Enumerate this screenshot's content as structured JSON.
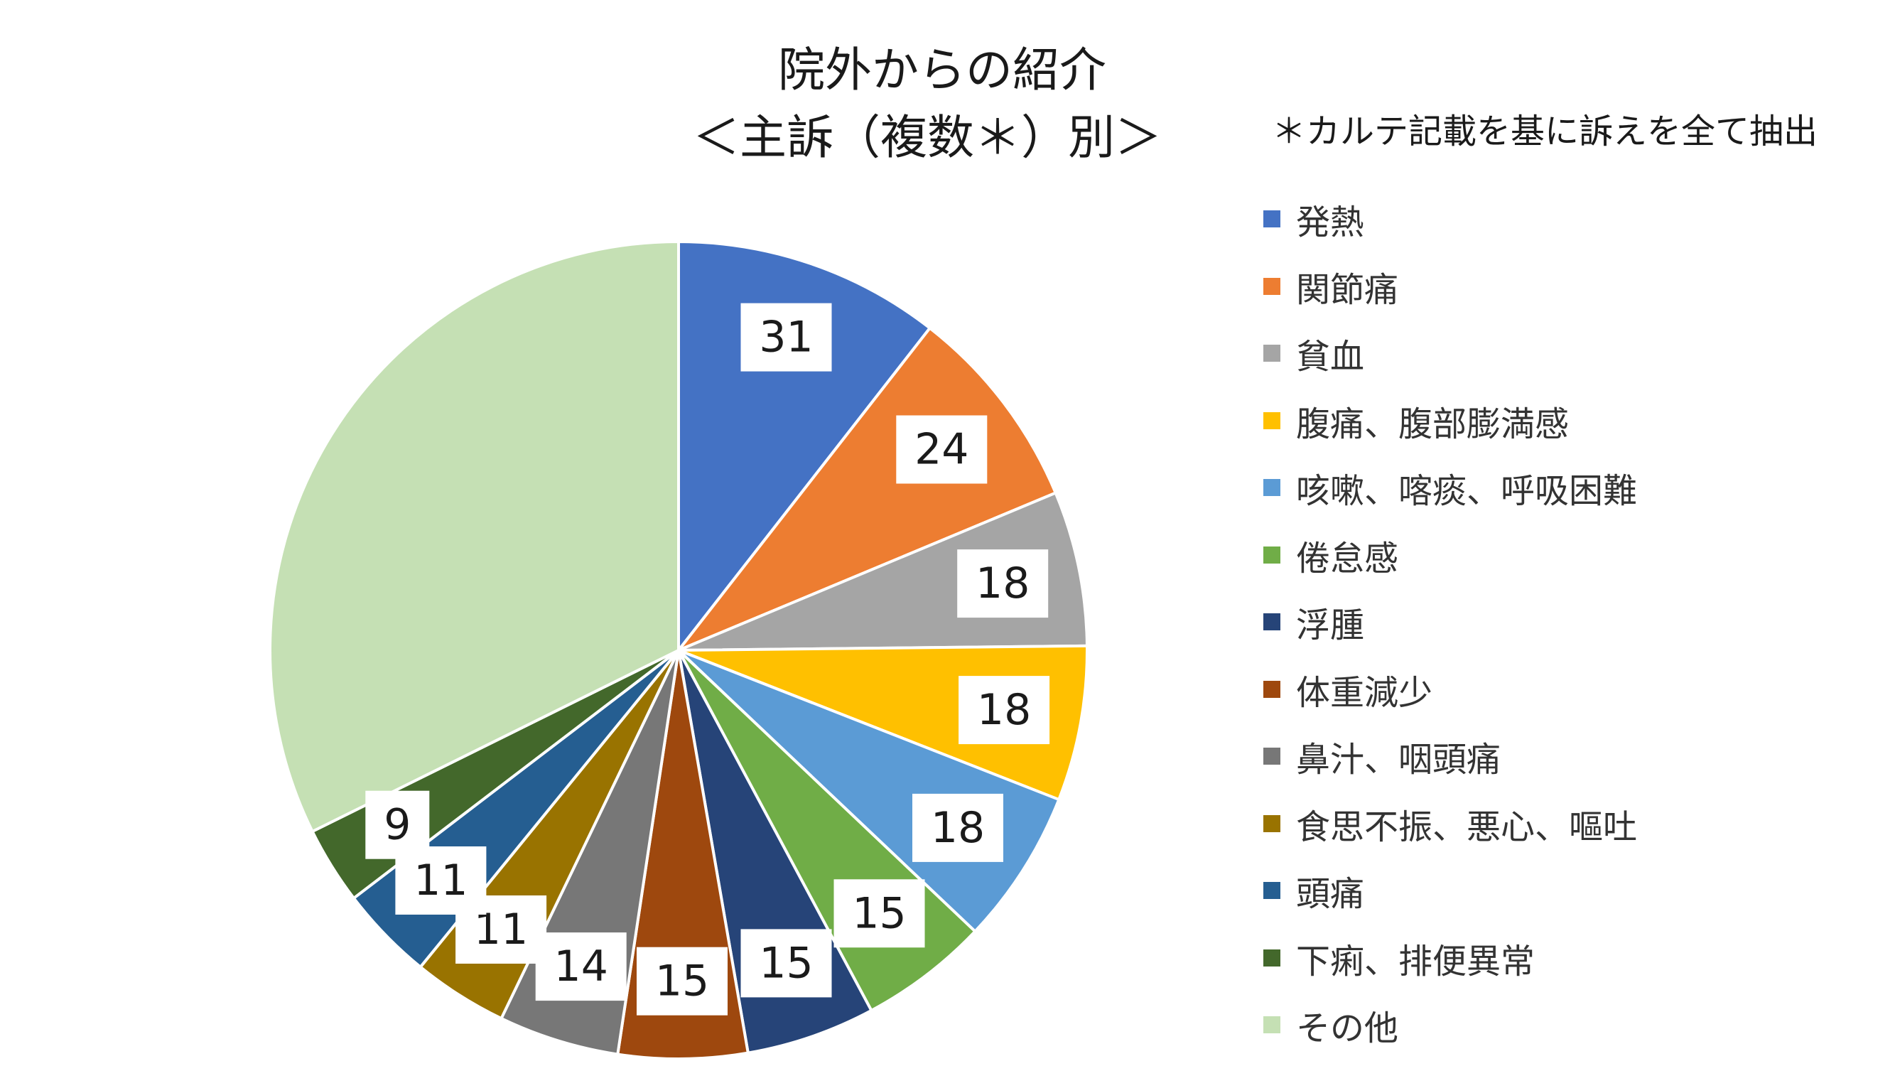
{
  "chart_data": {
    "type": "pie",
    "title": "院外からの紹介",
    "subtitle": "＜主訴（複数＊）別＞",
    "note": "＊カルテ記載を基に訴えを全て抽出",
    "start": "12 o'clock",
    "direction": "clockwise",
    "legend_position": "right",
    "slices": [
      {
        "name": "発熱",
        "value": 31,
        "label": "31",
        "color": "#4472C4"
      },
      {
        "name": "関節痛",
        "value": 24,
        "label": "24",
        "color": "#ED7D31"
      },
      {
        "name": "貧血",
        "value": 18,
        "label": "18",
        "color": "#A5A5A5"
      },
      {
        "name": "腹痛、腹部膨満感",
        "value": 18,
        "label": "18",
        "color": "#FFC000"
      },
      {
        "name": "咳嗽、喀痰、呼吸困難",
        "value": 18,
        "label": "18",
        "color": "#5B9BD5"
      },
      {
        "name": "倦怠感",
        "value": 15,
        "label": "15",
        "color": "#70AD47"
      },
      {
        "name": "浮腫",
        "value": 15,
        "label": "15",
        "color": "#264478"
      },
      {
        "name": "体重減少",
        "value": 15,
        "label": "15",
        "color": "#9E480E"
      },
      {
        "name": "鼻汁、咽頭痛",
        "value": 14,
        "label": "14",
        "color": "#777777"
      },
      {
        "name": "食思不振、悪心、嘔吐",
        "value": 11,
        "label": "11",
        "color": "#997300"
      },
      {
        "name": "頭痛",
        "value": 11,
        "label": "11",
        "color": "#255E91"
      },
      {
        "name": "下痢、排便異常",
        "value": 9,
        "label": "9",
        "color": "#43682B"
      },
      {
        "name": "その他",
        "value": 95,
        "label": "",
        "color": "#C5E0B4"
      }
    ]
  }
}
